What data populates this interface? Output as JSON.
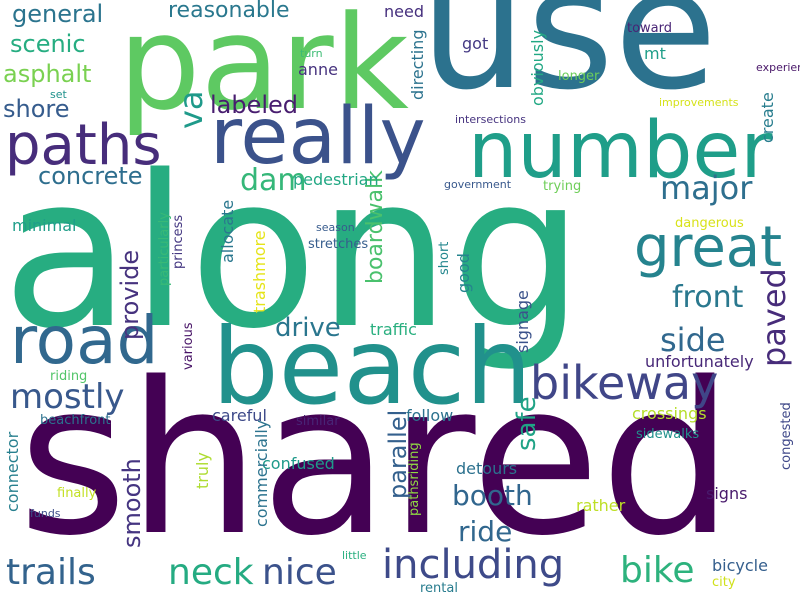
{
  "words": [
    {
      "text": "along",
      "color": "#27ad81"
    },
    {
      "text": "shared",
      "color": "#440154"
    },
    {
      "text": "use",
      "color": "#2c728e"
    },
    {
      "text": "park",
      "color": "#5ec962"
    },
    {
      "text": "beach",
      "color": "#21918c"
    },
    {
      "text": "number",
      "color": "#1f9e89"
    },
    {
      "text": "really",
      "color": "#3b528b"
    },
    {
      "text": "road",
      "color": "#31688e"
    },
    {
      "text": "paths",
      "color": "#472d7b"
    },
    {
      "text": "great",
      "color": "#25838e"
    },
    {
      "text": "bikeway",
      "color": "#404688"
    },
    {
      "text": "including",
      "color": "#3e4a89"
    },
    {
      "text": "trails",
      "color": "#33638d"
    },
    {
      "text": "bike",
      "color": "#2db27d"
    },
    {
      "text": "nice",
      "color": "#3b528b"
    },
    {
      "text": "neck",
      "color": "#25ab82"
    },
    {
      "text": "mostly",
      "color": "#38588c"
    },
    {
      "text": "major",
      "color": "#2e6f8e"
    },
    {
      "text": "paved",
      "color": "#472c7a"
    },
    {
      "text": "side",
      "color": "#31688e"
    },
    {
      "text": "front",
      "color": "#2a788e"
    },
    {
      "text": "dam",
      "color": "#35b779"
    },
    {
      "text": "va",
      "color": "#1f9a8a"
    },
    {
      "text": "ride",
      "color": "#31678e"
    },
    {
      "text": "booth",
      "color": "#31668e"
    },
    {
      "text": "drive",
      "color": "#2a768e"
    },
    {
      "text": "safe",
      "color": "#20a386"
    },
    {
      "text": "smooth",
      "color": "#453581"
    },
    {
      "text": "provide",
      "color": "#46327e"
    },
    {
      "text": "parallel",
      "color": "#34608d"
    },
    {
      "text": "concrete",
      "color": "#2e6e8e"
    },
    {
      "text": "general",
      "color": "#2b748e"
    },
    {
      "text": "scenic",
      "color": "#26ad81"
    },
    {
      "text": "asphalt",
      "color": "#7ad151"
    },
    {
      "text": "shore",
      "color": "#365c8d"
    },
    {
      "text": "labeled",
      "color": "#481d6f"
    },
    {
      "text": "reasonable",
      "color": "#2a788e"
    },
    {
      "text": "boardwalk",
      "color": "#4ac16d"
    },
    {
      "text": "anne",
      "color": "#46327e"
    },
    {
      "text": "got",
      "color": "#443983"
    },
    {
      "text": "need",
      "color": "#46307e"
    },
    {
      "text": "directing",
      "color": "#2c738e"
    },
    {
      "text": "obviously",
      "color": "#22a884"
    },
    {
      "text": "mt",
      "color": "#1f9e89"
    },
    {
      "text": "toward",
      "color": "#482475"
    },
    {
      "text": "longer",
      "color": "#6ccd5a"
    },
    {
      "text": "create",
      "color": "#287d8e"
    },
    {
      "text": "pedestrian",
      "color": "#22a884"
    },
    {
      "text": "traffic",
      "color": "#29af7f"
    },
    {
      "text": "signage",
      "color": "#3b528b"
    },
    {
      "text": "unfortunately",
      "color": "#482878"
    },
    {
      "text": "crossings",
      "color": "#b5de2b"
    },
    {
      "text": "follow",
      "color": "#2c728e"
    },
    {
      "text": "careful",
      "color": "#3e4a89"
    },
    {
      "text": "confused",
      "color": "#1f9a8a"
    },
    {
      "text": "detours",
      "color": "#2c718e"
    },
    {
      "text": "rather",
      "color": "#bddf26"
    },
    {
      "text": "signs",
      "color": "#481a6c"
    },
    {
      "text": "bicycle",
      "color": "#355f8d"
    },
    {
      "text": "city",
      "color": "#d0e11c"
    },
    {
      "text": "rental",
      "color": "#287c8e"
    },
    {
      "text": "congested",
      "color": "#3f4889"
    },
    {
      "text": "sidewalks",
      "color": "#21918c"
    },
    {
      "text": "pathsriding",
      "color": "#8fd744"
    },
    {
      "text": "little",
      "color": "#29af7f"
    },
    {
      "text": "commercially",
      "color": "#2c738e"
    },
    {
      "text": "truly",
      "color": "#addc30"
    },
    {
      "text": "finally",
      "color": "#c2df23"
    },
    {
      "text": "connector",
      "color": "#277f8e"
    },
    {
      "text": "funds",
      "color": "#3d4e8a"
    },
    {
      "text": "beachfront",
      "color": "#2c728e"
    },
    {
      "text": "riding",
      "color": "#52c569"
    },
    {
      "text": "various",
      "color": "#481467"
    },
    {
      "text": "similar",
      "color": "#482475"
    },
    {
      "text": "trashmore",
      "color": "#e5e419"
    },
    {
      "text": "allocate",
      "color": "#2a778e"
    },
    {
      "text": "particularly",
      "color": "#38b977"
    },
    {
      "text": "princess",
      "color": "#453882"
    },
    {
      "text": "minimal",
      "color": "#1f9e89"
    },
    {
      "text": "stretches",
      "color": "#365d8d"
    },
    {
      "text": "season",
      "color": "#375b8d"
    },
    {
      "text": "short",
      "color": "#24878e"
    },
    {
      "text": "good",
      "color": "#25848e"
    },
    {
      "text": "dangerous",
      "color": "#d8e219"
    },
    {
      "text": "trying",
      "color": "#6ece58"
    },
    {
      "text": "government",
      "color": "#38588c"
    },
    {
      "text": "intersections",
      "color": "#46337f"
    },
    {
      "text": "improvements",
      "color": "#d5e21a"
    },
    {
      "text": "experience",
      "color": "#481668"
    },
    {
      "text": "turn",
      "color": "#3dbc74"
    },
    {
      "text": "set",
      "color": "#20928c"
    },
    {
      "text": "near",
      "color": "#3b528b"
    },
    {
      "text": "widened",
      "color": "#46075a"
    }
  ]
}
